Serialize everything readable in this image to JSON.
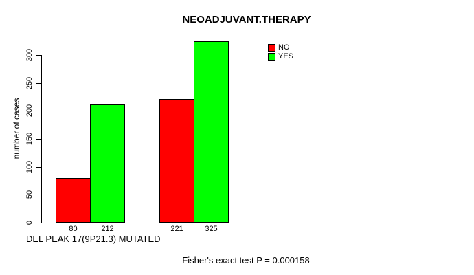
{
  "title": "NEOADJUVANT.THERAPY",
  "y_axis": {
    "label": "number of cases"
  },
  "x_axis": {
    "label": "DEL PEAK 17(9P21.3) MUTATED"
  },
  "footer": {
    "stat_text": "Fisher's exact test P = 0.000158"
  },
  "legend": {
    "items": [
      {
        "label": "NO",
        "color": "#ff0000"
      },
      {
        "label": "YES",
        "color": "#00ff00"
      }
    ]
  },
  "chart_data": {
    "type": "bar",
    "title": "NEOADJUVANT.THERAPY",
    "xlabel": "DEL PEAK 17(9P21.3) MUTATED",
    "ylabel": "number of cases",
    "ylim": [
      0,
      330
    ],
    "y_ticks": [
      0,
      50,
      100,
      150,
      200,
      250,
      300
    ],
    "grid": false,
    "legend_position": "top-right",
    "series": [
      {
        "name": "NO",
        "color": "#ff0000"
      },
      {
        "name": "YES",
        "color": "#00ff00"
      }
    ],
    "groups": [
      {
        "bars": [
          {
            "series": "NO",
            "value": 80,
            "label": "80"
          },
          {
            "series": "YES",
            "value": 212,
            "label": "212"
          }
        ]
      },
      {
        "bars": [
          {
            "series": "NO",
            "value": 221,
            "label": "221"
          },
          {
            "series": "YES",
            "value": 325,
            "label": "325"
          }
        ]
      }
    ],
    "annotation": "Fisher's exact test P = 0.000158"
  }
}
